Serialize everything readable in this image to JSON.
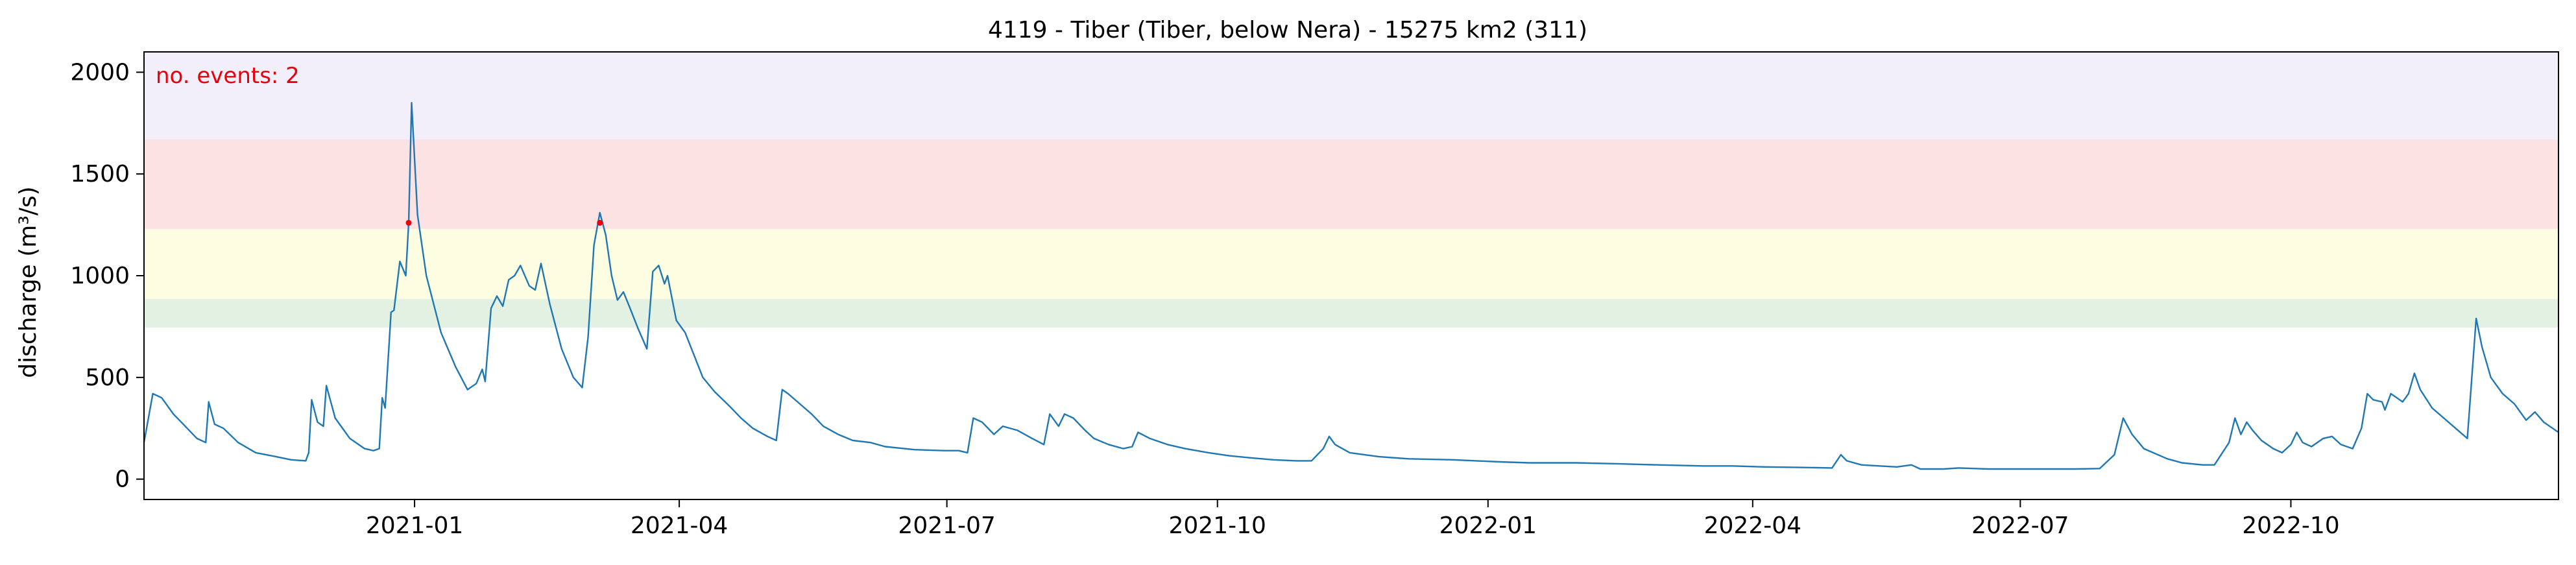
{
  "chart_data": {
    "type": "line",
    "title": "4119 - Tiber (Tiber, below Nera) - 15275 km2 (311)",
    "xlabel": "",
    "ylabel": "discharge (m³/s)",
    "xlim": [
      "2020-10-01",
      "2022-12-31"
    ],
    "ylim": [
      -100,
      2100
    ],
    "x_ticks": [
      "2021-01",
      "2021-04",
      "2021-07",
      "2021-10",
      "2022-01",
      "2022-04",
      "2022-07",
      "2022-10"
    ],
    "y_ticks": [
      0,
      500,
      1000,
      1500,
      2000
    ],
    "grid": false,
    "annotation": "no. events: 2",
    "bands": [
      {
        "from": 745,
        "to": 885,
        "color": "#e3f1e3"
      },
      {
        "from": 885,
        "to": 1230,
        "color": "#fdfde2"
      },
      {
        "from": 1230,
        "to": 1670,
        "color": "#fde2e4"
      },
      {
        "from": 1670,
        "to": 2100,
        "color": "#f2effa"
      }
    ],
    "series": [
      {
        "color": "#1f77b4",
        "points": [
          [
            "2020-10-01",
            180
          ],
          [
            "2020-10-04",
            420
          ],
          [
            "2020-10-07",
            400
          ],
          [
            "2020-10-11",
            320
          ],
          [
            "2020-10-15",
            260
          ],
          [
            "2020-10-19",
            200
          ],
          [
            "2020-10-22",
            180
          ],
          [
            "2020-10-23",
            380
          ],
          [
            "2020-10-25",
            270
          ],
          [
            "2020-10-28",
            250
          ],
          [
            "2020-11-02",
            180
          ],
          [
            "2020-11-08",
            130
          ],
          [
            "2020-11-15",
            110
          ],
          [
            "2020-11-20",
            95
          ],
          [
            "2020-11-25",
            90
          ],
          [
            "2020-11-26",
            130
          ],
          [
            "2020-11-27",
            390
          ],
          [
            "2020-11-29",
            280
          ],
          [
            "2020-12-01",
            260
          ],
          [
            "2020-12-02",
            460
          ],
          [
            "2020-12-05",
            300
          ],
          [
            "2020-12-10",
            200
          ],
          [
            "2020-12-15",
            150
          ],
          [
            "2020-12-18",
            140
          ],
          [
            "2020-12-20",
            150
          ],
          [
            "2020-12-21",
            400
          ],
          [
            "2020-12-22",
            350
          ],
          [
            "2020-12-24",
            820
          ],
          [
            "2020-12-25",
            830
          ],
          [
            "2020-12-27",
            1070
          ],
          [
            "2020-12-29",
            1000
          ],
          [
            "2020-12-30",
            1260
          ],
          [
            "2020-12-31",
            1850
          ],
          [
            "2021-01-02",
            1300
          ],
          [
            "2021-01-05",
            1000
          ],
          [
            "2021-01-10",
            720
          ],
          [
            "2021-01-15",
            550
          ],
          [
            "2021-01-19",
            440
          ],
          [
            "2021-01-22",
            470
          ],
          [
            "2021-01-24",
            540
          ],
          [
            "2021-01-25",
            480
          ],
          [
            "2021-01-27",
            840
          ],
          [
            "2021-01-29",
            900
          ],
          [
            "2021-01-31",
            850
          ],
          [
            "2021-02-02",
            980
          ],
          [
            "2021-02-04",
            1000
          ],
          [
            "2021-02-06",
            1050
          ],
          [
            "2021-02-09",
            950
          ],
          [
            "2021-02-11",
            930
          ],
          [
            "2021-02-13",
            1060
          ],
          [
            "2021-02-16",
            860
          ],
          [
            "2021-02-20",
            640
          ],
          [
            "2021-02-24",
            500
          ],
          [
            "2021-02-27",
            450
          ],
          [
            "2021-03-01",
            700
          ],
          [
            "2021-03-03",
            1150
          ],
          [
            "2021-03-05",
            1310
          ],
          [
            "2021-03-07",
            1200
          ],
          [
            "2021-03-09",
            1000
          ],
          [
            "2021-03-11",
            880
          ],
          [
            "2021-03-13",
            920
          ],
          [
            "2021-03-15",
            850
          ],
          [
            "2021-03-18",
            740
          ],
          [
            "2021-03-21",
            640
          ],
          [
            "2021-03-23",
            1020
          ],
          [
            "2021-03-25",
            1050
          ],
          [
            "2021-03-27",
            960
          ],
          [
            "2021-03-28",
            1000
          ],
          [
            "2021-03-31",
            780
          ],
          [
            "2021-04-03",
            720
          ],
          [
            "2021-04-06",
            610
          ],
          [
            "2021-04-09",
            500
          ],
          [
            "2021-04-13",
            430
          ],
          [
            "2021-04-18",
            360
          ],
          [
            "2021-04-22",
            300
          ],
          [
            "2021-04-26",
            250
          ],
          [
            "2021-05-01",
            210
          ],
          [
            "2021-05-04",
            190
          ],
          [
            "2021-05-06",
            440
          ],
          [
            "2021-05-08",
            420
          ],
          [
            "2021-05-12",
            370
          ],
          [
            "2021-05-16",
            320
          ],
          [
            "2021-05-20",
            260
          ],
          [
            "2021-05-25",
            220
          ],
          [
            "2021-05-30",
            190
          ],
          [
            "2021-06-05",
            180
          ],
          [
            "2021-06-10",
            160
          ],
          [
            "2021-06-20",
            145
          ],
          [
            "2021-06-30",
            140
          ],
          [
            "2021-07-05",
            140
          ],
          [
            "2021-07-08",
            130
          ],
          [
            "2021-07-10",
            300
          ],
          [
            "2021-07-13",
            280
          ],
          [
            "2021-07-17",
            220
          ],
          [
            "2021-07-20",
            260
          ],
          [
            "2021-07-25",
            240
          ],
          [
            "2021-07-30",
            200
          ],
          [
            "2021-08-03",
            170
          ],
          [
            "2021-08-05",
            320
          ],
          [
            "2021-08-08",
            260
          ],
          [
            "2021-08-10",
            320
          ],
          [
            "2021-08-13",
            300
          ],
          [
            "2021-08-17",
            240
          ],
          [
            "2021-08-20",
            200
          ],
          [
            "2021-08-25",
            170
          ],
          [
            "2021-08-30",
            150
          ],
          [
            "2021-09-02",
            160
          ],
          [
            "2021-09-04",
            230
          ],
          [
            "2021-09-08",
            200
          ],
          [
            "2021-09-14",
            170
          ],
          [
            "2021-09-20",
            150
          ],
          [
            "2021-09-28",
            130
          ],
          [
            "2021-10-05",
            115
          ],
          [
            "2021-10-12",
            105
          ],
          [
            "2021-10-20",
            95
          ],
          [
            "2021-10-28",
            90
          ],
          [
            "2021-11-02",
            90
          ],
          [
            "2021-11-06",
            150
          ],
          [
            "2021-11-08",
            210
          ],
          [
            "2021-11-10",
            170
          ],
          [
            "2021-11-15",
            130
          ],
          [
            "2021-11-25",
            110
          ],
          [
            "2021-12-05",
            100
          ],
          [
            "2021-12-20",
            95
          ],
          [
            "2022-01-05",
            85
          ],
          [
            "2022-01-15",
            80
          ],
          [
            "2022-01-31",
            80
          ],
          [
            "2022-02-15",
            75
          ],
          [
            "2022-02-28",
            70
          ],
          [
            "2022-03-15",
            65
          ],
          [
            "2022-03-25",
            65
          ],
          [
            "2022-04-05",
            60
          ],
          [
            "2022-04-15",
            58
          ],
          [
            "2022-04-28",
            55
          ],
          [
            "2022-05-01",
            120
          ],
          [
            "2022-05-03",
            90
          ],
          [
            "2022-05-08",
            70
          ],
          [
            "2022-05-14",
            65
          ],
          [
            "2022-05-20",
            60
          ],
          [
            "2022-05-25",
            70
          ],
          [
            "2022-05-28",
            50
          ],
          [
            "2022-06-05",
            50
          ],
          [
            "2022-06-10",
            55
          ],
          [
            "2022-06-20",
            50
          ],
          [
            "2022-07-05",
            50
          ],
          [
            "2022-07-20",
            50
          ],
          [
            "2022-07-28",
            52
          ],
          [
            "2022-08-02",
            120
          ],
          [
            "2022-08-05",
            300
          ],
          [
            "2022-08-08",
            220
          ],
          [
            "2022-08-12",
            150
          ],
          [
            "2022-08-20",
            100
          ],
          [
            "2022-08-25",
            80
          ],
          [
            "2022-09-01",
            70
          ],
          [
            "2022-09-05",
            70
          ],
          [
            "2022-09-10",
            180
          ],
          [
            "2022-09-12",
            300
          ],
          [
            "2022-09-14",
            220
          ],
          [
            "2022-09-16",
            280
          ],
          [
            "2022-09-18",
            240
          ],
          [
            "2022-09-21",
            190
          ],
          [
            "2022-09-25",
            150
          ],
          [
            "2022-09-28",
            130
          ],
          [
            "2022-10-01",
            170
          ],
          [
            "2022-10-03",
            230
          ],
          [
            "2022-10-05",
            180
          ],
          [
            "2022-10-08",
            160
          ],
          [
            "2022-10-12",
            200
          ],
          [
            "2022-10-15",
            210
          ],
          [
            "2022-10-18",
            170
          ],
          [
            "2022-10-22",
            150
          ],
          [
            "2022-10-25",
            250
          ],
          [
            "2022-10-27",
            420
          ],
          [
            "2022-10-29",
            390
          ],
          [
            "2022-11-01",
            380
          ],
          [
            "2022-11-02",
            340
          ],
          [
            "2022-11-04",
            420
          ],
          [
            "2022-11-06",
            400
          ],
          [
            "2022-11-08",
            380
          ],
          [
            "2022-11-10",
            420
          ],
          [
            "2022-11-12",
            520
          ],
          [
            "2022-11-14",
            440
          ],
          [
            "2022-11-18",
            350
          ],
          [
            "2022-11-22",
            300
          ],
          [
            "2022-11-26",
            250
          ],
          [
            "2022-11-30",
            200
          ],
          [
            "2022-12-03",
            790
          ],
          [
            "2022-12-05",
            650
          ],
          [
            "2022-12-08",
            500
          ],
          [
            "2022-12-12",
            420
          ],
          [
            "2022-12-16",
            370
          ],
          [
            "2022-12-20",
            290
          ],
          [
            "2022-12-23",
            330
          ],
          [
            "2022-12-26",
            280
          ],
          [
            "2022-12-29",
            250
          ],
          [
            "2022-12-31",
            230
          ]
        ]
      }
    ],
    "events": [
      {
        "x": "2020-12-30",
        "y": 1260
      },
      {
        "x": "2021-03-05",
        "y": 1260
      }
    ]
  }
}
